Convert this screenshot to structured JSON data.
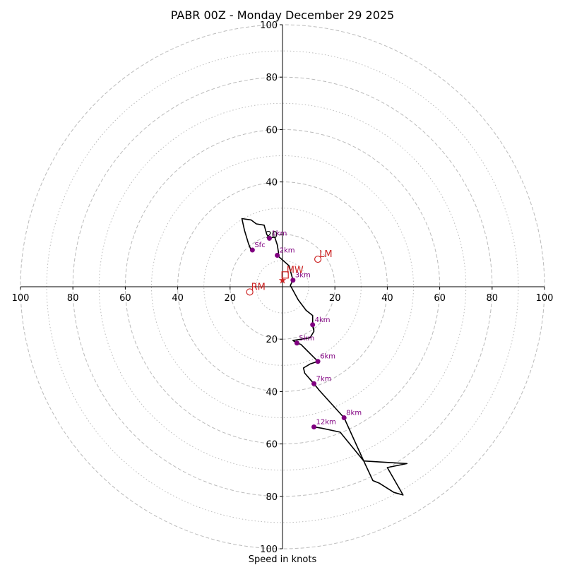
{
  "chart_data": {
    "type": "hodograph",
    "title": "PABR 00Z - Monday December 29 2025",
    "xlabel": "Speed in knots",
    "ylabel": "",
    "range": [
      -100,
      100
    ],
    "ring_major": [
      20,
      40,
      60,
      80,
      100
    ],
    "ring_minor": [
      10,
      30,
      50,
      70,
      90
    ],
    "x_ticks": [
      {
        "value": -100,
        "label": "100"
      },
      {
        "value": -80,
        "label": "80"
      },
      {
        "value": -60,
        "label": "60"
      },
      {
        "value": -40,
        "label": "40"
      },
      {
        "value": -20,
        "label": "20"
      },
      {
        "value": 20,
        "label": "20"
      },
      {
        "value": 40,
        "label": "40"
      },
      {
        "value": 60,
        "label": "60"
      },
      {
        "value": 80,
        "label": "80"
      },
      {
        "value": 100,
        "label": "100"
      }
    ],
    "y_ticks": [
      {
        "value": 100,
        "label": "100"
      },
      {
        "value": 80,
        "label": "80"
      },
      {
        "value": 60,
        "label": "60"
      },
      {
        "value": 40,
        "label": "40"
      },
      {
        "value": 20,
        "label": "20"
      },
      {
        "value": -20,
        "label": "20"
      },
      {
        "value": -40,
        "label": "40"
      },
      {
        "value": -60,
        "label": "60"
      },
      {
        "value": -80,
        "label": "80"
      },
      {
        "value": -100,
        "label": "100"
      }
    ],
    "trace": [
      [
        -12,
        14
      ],
      [
        -13,
        16.5
      ],
      [
        -14.5,
        21.5
      ],
      [
        -15.5,
        26
      ],
      [
        -12,
        25.5
      ],
      [
        -10,
        24
      ],
      [
        -7,
        23.5
      ],
      [
        -6,
        20
      ],
      [
        -5,
        18.5
      ],
      [
        -3,
        19
      ],
      [
        -2,
        16
      ],
      [
        -1.5,
        13
      ],
      [
        -2,
        12
      ],
      [
        2.5,
        8
      ],
      [
        4,
        2.5
      ],
      [
        3,
        0.5
      ],
      [
        6,
        -5
      ],
      [
        9,
        -9
      ],
      [
        11.5,
        -11
      ],
      [
        11.5,
        -14.5
      ],
      [
        12,
        -16.5
      ],
      [
        11.5,
        -15
      ],
      [
        12,
        -17
      ],
      [
        10.5,
        -19.5
      ],
      [
        4,
        -20.5
      ],
      [
        5.5,
        -21.5
      ],
      [
        7,
        -22
      ],
      [
        9,
        -24
      ],
      [
        13.5,
        -28.5
      ],
      [
        10.5,
        -29.5
      ],
      [
        8,
        -31
      ],
      [
        8.5,
        -33
      ],
      [
        12,
        -37
      ],
      [
        14,
        -39.5
      ],
      [
        23.5,
        -50
      ],
      [
        31,
        -66.5
      ],
      [
        47.5,
        -67.5
      ],
      [
        40,
        -69
      ],
      [
        46,
        -79.5
      ],
      [
        42.5,
        -78.5
      ],
      [
        37,
        -75
      ],
      [
        34.5,
        -74
      ],
      [
        31,
        -66.5
      ],
      [
        22,
        -55.5
      ],
      [
        15,
        -54
      ],
      [
        12,
        -53.5
      ]
    ],
    "height_markers": [
      {
        "label": "Sfc",
        "u": -11.5,
        "v": 14
      },
      {
        "label": "1km",
        "u": -5,
        "v": 18.5
      },
      {
        "label": "2km",
        "u": -2,
        "v": 12
      },
      {
        "label": "3km",
        "u": 4,
        "v": 2.5
      },
      {
        "label": "4km",
        "u": 11.5,
        "v": -14.5
      },
      {
        "label": "5km",
        "u": 5.5,
        "v": -21.5
      },
      {
        "label": "6km",
        "u": 13.5,
        "v": -28.5
      },
      {
        "label": "7km",
        "u": 12,
        "v": -37
      },
      {
        "label": "8km",
        "u": 23.5,
        "v": -50
      },
      {
        "label": "12km",
        "u": 12,
        "v": -53.5
      }
    ],
    "storm_motions": [
      {
        "label": "LM",
        "u": 13.5,
        "v": 10.5,
        "marker": "circle"
      },
      {
        "label": "MW",
        "u": 1,
        "v": 4.5,
        "marker": "square"
      },
      {
        "label": "RM",
        "u": -12.5,
        "v": -2,
        "marker": "circle"
      }
    ],
    "deviant_marker": {
      "u": 0,
      "v": 2.5,
      "marker": "star"
    },
    "colors": {
      "trace": "#000000",
      "height_marker": "#800080",
      "height_label": "#800080",
      "storm_motion": "#cc2222",
      "ring": "#bbbbbb",
      "axis": "#000000"
    }
  }
}
